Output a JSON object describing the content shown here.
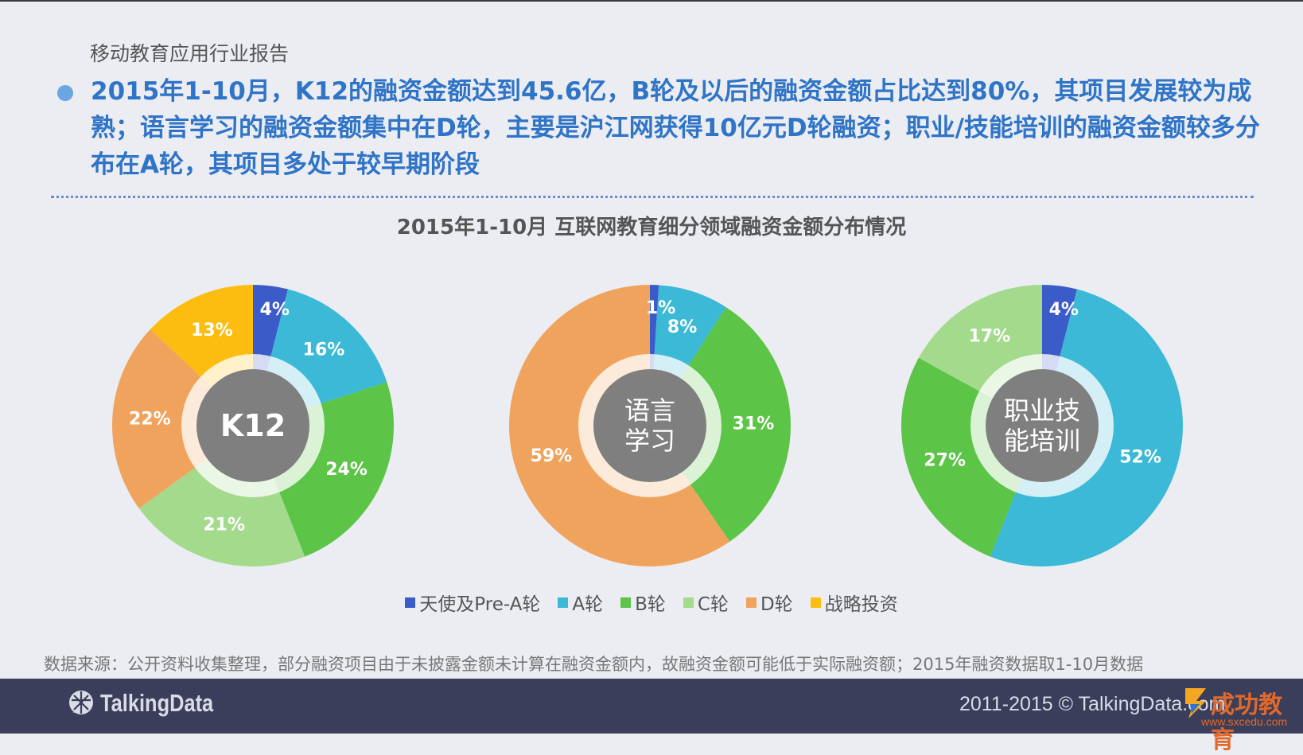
{
  "header": {
    "report_label": "移动教育应用行业报告",
    "headline": "2015年1-10月，K12的融资金额达到45.6亿，B轮及以后的融资金额占比达到80%，其项目发展较为成熟；语言学习的融资金额集中在D轮，主要是沪江网获得10亿元D轮融资；职业/技能培训的融资金额较多分布在A轮，其项目多处于较早期阶段"
  },
  "chart_title": "2015年1-10月  互联网教育细分领域融资金额分布情况",
  "colors": {
    "angel": "#3b5bc9",
    "a": "#3bb9d6",
    "b": "#5cc447",
    "c": "#a3da8c",
    "d": "#f0a35c",
    "strategic": "#fdbd10",
    "hub_ring": "#ffffff",
    "hub": "#7f7f7f",
    "accent": "#2f74c7"
  },
  "chart_data": [
    {
      "type": "pie",
      "center_label": "K12",
      "categories": [
        "天使及Pre-A轮",
        "A轮",
        "B轮",
        "C轮",
        "D轮",
        "战略投资"
      ],
      "values": [
        4,
        16,
        24,
        21,
        22,
        13
      ],
      "labels": [
        "4%",
        "16%",
        "24%",
        "21%",
        "22%",
        "13%"
      ]
    },
    {
      "type": "pie",
      "center_label": "语言\n学习",
      "categories": [
        "天使及Pre-A轮",
        "A轮",
        "B轮",
        "D轮"
      ],
      "values": [
        1,
        8,
        31,
        59
      ],
      "labels": [
        "1%",
        "8%",
        "31%",
        "59%"
      ]
    },
    {
      "type": "pie",
      "center_label": "职业技\n能培训",
      "categories": [
        "天使及Pre-A轮",
        "A轮",
        "B轮",
        "C轮"
      ],
      "values": [
        4,
        52,
        27,
        17
      ],
      "labels": [
        "4%",
        "52%",
        "27%",
        "17%"
      ]
    }
  ],
  "legend": [
    {
      "label": "天使及Pre-A轮",
      "color": "#3b5bc9"
    },
    {
      "label": "A轮",
      "color": "#3bb9d6"
    },
    {
      "label": "B轮",
      "color": "#5cc447"
    },
    {
      "label": "C轮",
      "color": "#a3da8c"
    },
    {
      "label": "D轮",
      "color": "#f0a35c"
    },
    {
      "label": "战略投资",
      "color": "#fdbd10"
    }
  ],
  "source_note": "数据来源：公开资料收集整理，部分融资项目由于未披露金额未计算在融资金额内，故融资金额可能低于实际融资额；2015年融资数据取1-10月数据",
  "footer": {
    "logo_text": "TalkingData",
    "copyright": "2011-2015 © TalkingData.com",
    "watermark_name": "成功教育",
    "watermark_url": "www.sxcedu.com"
  }
}
